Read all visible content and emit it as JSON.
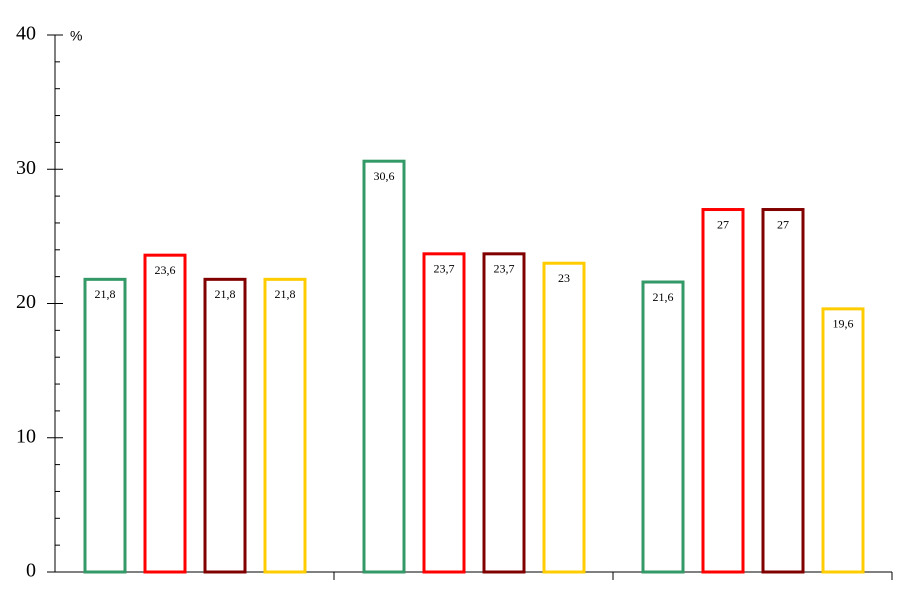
{
  "chart_data": {
    "type": "bar",
    "y_label": "%",
    "categories": [
      null,
      null,
      null
    ],
    "series": [
      {
        "color": "#339966",
        "values": [
          21.8,
          30.6,
          21.6
        ],
        "value_labels": [
          "21,8",
          "30,6",
          "21,6"
        ]
      },
      {
        "color": "#ff0000",
        "values": [
          23.6,
          23.7,
          27
        ],
        "value_labels": [
          "23,6",
          "23,7",
          "27"
        ]
      },
      {
        "color": "#800000",
        "values": [
          21.8,
          23.7,
          27
        ],
        "value_labels": [
          "21,8",
          "23,7",
          "27"
        ]
      },
      {
        "color": "#ffcc00",
        "values": [
          21.8,
          23,
          19.6
        ],
        "value_labels": [
          "21,8",
          "23",
          "19,6"
        ]
      }
    ],
    "ylim": [
      0,
      40
    ],
    "yticks": [
      0,
      10,
      20,
      30,
      40
    ],
    "minor_yticks": [
      2,
      4,
      6,
      8,
      12,
      14,
      16,
      18,
      22,
      24,
      26,
      28,
      32,
      34,
      36,
      38
    ],
    "grid": false
  }
}
